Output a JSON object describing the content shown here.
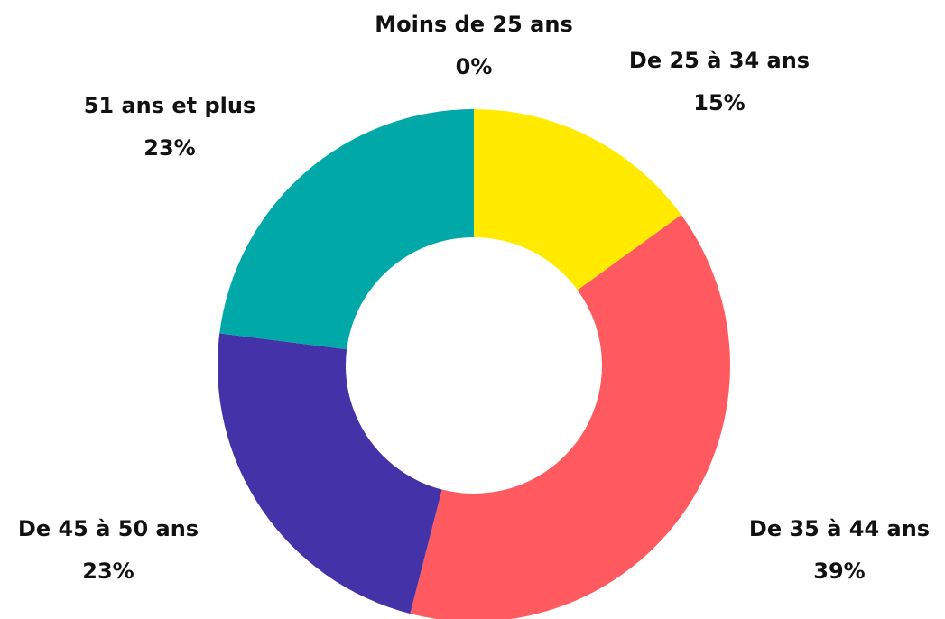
{
  "chart_data": {
    "type": "donut",
    "categories": [
      "Moins de 25 ans",
      "De 25 à 34 ans",
      "De 35 à 44 ans",
      "De 45 à 50 ans",
      "51 ans et plus"
    ],
    "values": [
      0,
      15,
      39,
      23,
      23
    ],
    "value_labels": [
      "0%",
      "15%",
      "39%",
      "23%",
      "23%"
    ],
    "colors": [
      null,
      "#ffea00",
      "#ff5a5f",
      "#4433a8",
      "#00a8a8"
    ]
  }
}
